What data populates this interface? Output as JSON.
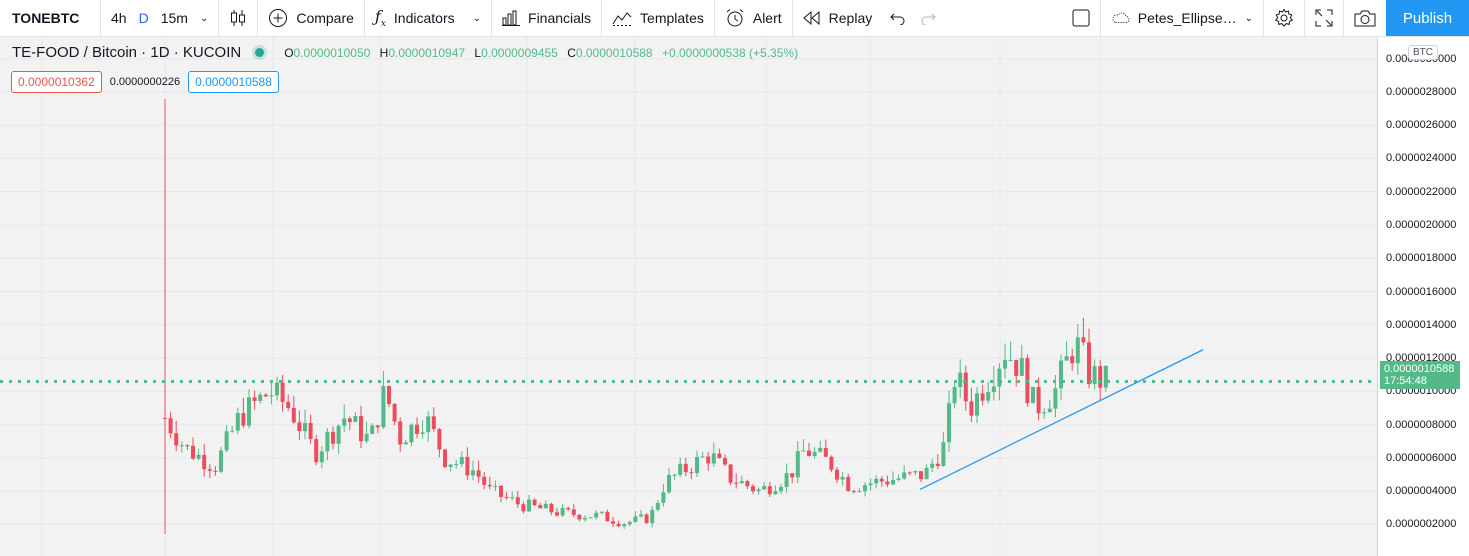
{
  "toolbar": {
    "symbol": "TONEBTC",
    "resolutions": [
      "4h",
      "D",
      "15m"
    ],
    "active_resolution": "D",
    "compare_label": "Compare",
    "indicators_label": "Indicators",
    "financials_label": "Financials",
    "templates_label": "Templates",
    "alert_label": "Alert",
    "replay_label": "Replay",
    "layout_name": "Petes_Ellipse…",
    "publish_label": "Publish"
  },
  "legend": {
    "title": "TE-FOOD / Bitcoin · 1D · KUCOIN",
    "o_label": "O",
    "o_value": "0.0000010050",
    "h_label": "H",
    "h_value": "0.0000010947",
    "l_label": "L",
    "l_value": "0.0000009455",
    "c_label": "C",
    "c_value": "0.0000010588",
    "change": "+0.0000000538 (+5.35%)"
  },
  "trade": {
    "sell_price": "0.0000010362",
    "spread": "0.0000000226",
    "buy_price": "0.0000010588"
  },
  "price_axis": {
    "currency": "BTC",
    "ticks": [
      "0.0000030000",
      "0.0000028000",
      "0.0000026000",
      "0.0000024000",
      "0.0000022000",
      "0.0000020000",
      "0.0000018000",
      "0.0000016000",
      "0.0000014000",
      "0.0000012000",
      "0.0000010000",
      "0.0000008000",
      "0.0000006000",
      "0.0000004000",
      "0.0000002000"
    ],
    "last_price": "0.0000010588",
    "countdown": "17:54:48"
  },
  "colors": {
    "up": "#53b987",
    "down": "#eb4d5c",
    "accent": "#2196f3",
    "active_resolution": "#2962ff"
  },
  "chart_data": {
    "type": "candlestick",
    "title": "TE-FOOD / Bitcoin · 1D · KUCOIN",
    "ylim": [
      1e-08,
      3.13e-06
    ],
    "last_close": 1.0588e-06,
    "start_close": 8.4e-07,
    "trough_close": 2.2e-07,
    "peak_high": 1.4803e-06,
    "trend_line": {
      "from": 4.1e-07,
      "to": 1.25e-06
    }
  }
}
